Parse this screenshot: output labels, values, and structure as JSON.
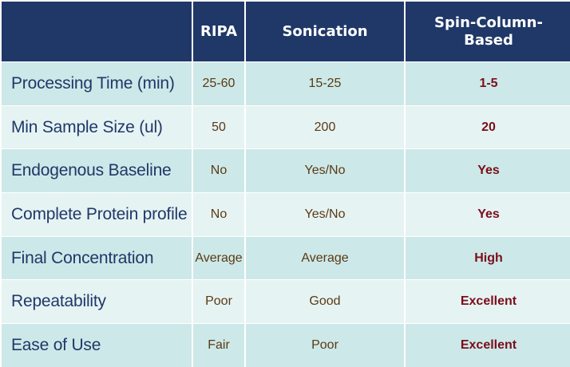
{
  "table": {
    "headers": [
      "",
      "RIPA",
      "Sonication",
      "Spin-Column-\nBased"
    ],
    "rows": [
      {
        "label": "Processing Time (min)",
        "values": [
          "25-60",
          "15-25",
          "1-5"
        ]
      },
      {
        "label": "Min Sample Size (ul)",
        "values": [
          "50",
          "200",
          "20"
        ]
      },
      {
        "label": "Endogenous Baseline",
        "values": [
          "No",
          "Yes/No",
          "Yes"
        ]
      },
      {
        "label": "Complete Protein profile",
        "values": [
          "No",
          "Yes/No",
          "Yes"
        ]
      },
      {
        "label": "Final Concentration",
        "values": [
          "Average",
          "Average",
          "High"
        ]
      },
      {
        "label": "Repeatability",
        "values": [
          "Poor",
          "Good",
          "Excellent"
        ]
      },
      {
        "label": "Ease of Use",
        "values": [
          "Fair",
          "Poor",
          "Excellent"
        ]
      }
    ]
  },
  "colors": {
    "header_bg": "#1f3868",
    "header_text": "#ffffff",
    "row_odd_bg": "#cde8e8",
    "row_even_bg": "#e6f3f3",
    "label_text": "#1f3868",
    "value_text": "#5a3a14",
    "highlight_text": "#7a0e1a"
  }
}
